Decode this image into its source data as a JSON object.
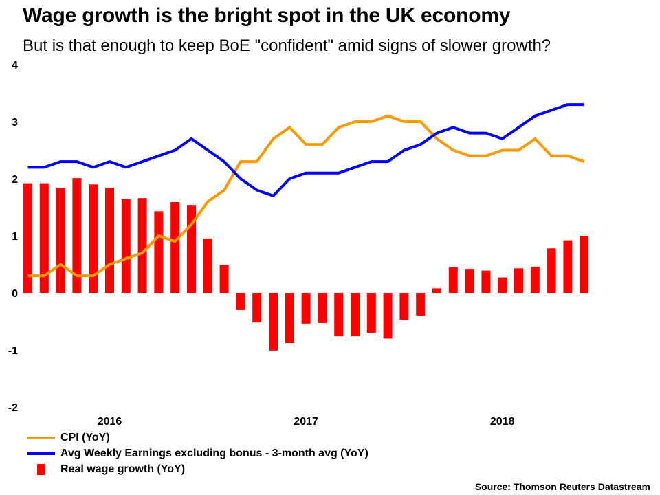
{
  "header": {
    "title": "Wage growth is the bright spot in the UK economy",
    "subtitle": "But is that enough to keep BoE \"confident\" amid signs of slower growth?"
  },
  "source": "Source: Thomson Reuters Datastream",
  "colors": {
    "cpi": "#FF9900",
    "earnings": "#0000FF",
    "real_wage": "#FF0000"
  },
  "legend": [
    {
      "label": "CPI (YoY)",
      "series": "cpi",
      "kind": "line"
    },
    {
      "label": "Avg Weekly Earnings excluding bonus - 3-month avg (YoY)",
      "series": "earnings",
      "kind": "line"
    },
    {
      "label": "Real wage growth (YoY)",
      "series": "real_wage",
      "kind": "bar"
    }
  ],
  "chart_data": {
    "type": "bar+line",
    "title": "Wage growth is the bright spot in the UK economy",
    "subtitle": "But is that enough to keep BoE \"confident\" amid signs of slower growth?",
    "xlabel": "",
    "ylabel": "",
    "ylim": [
      -2,
      4
    ],
    "yticks": [
      4,
      3,
      2,
      1,
      0,
      -1,
      -2
    ],
    "grid": false,
    "legend_position": "bottom-left",
    "x_year_labels": [
      {
        "label": "2016",
        "index": 5
      },
      {
        "label": "2017",
        "index": 17
      },
      {
        "label": "2018",
        "index": 29
      }
    ],
    "n_periods": 35,
    "series": [
      {
        "name": "CPI (YoY)",
        "type": "line",
        "values": [
          0.3,
          0.3,
          0.5,
          0.3,
          0.3,
          0.5,
          0.6,
          0.7,
          1.0,
          0.9,
          1.2,
          1.6,
          1.8,
          2.3,
          2.3,
          2.7,
          2.9,
          2.6,
          2.6,
          2.9,
          3.0,
          3.0,
          3.1,
          3.0,
          3.0,
          2.7,
          2.5,
          2.4,
          2.4,
          2.5,
          2.5,
          2.7,
          2.4,
          2.4,
          2.3
        ]
      },
      {
        "name": "Avg Weekly Earnings excluding bonus - 3-month avg (YoY)",
        "type": "line",
        "values": [
          2.2,
          2.2,
          2.3,
          2.3,
          2.2,
          2.3,
          2.2,
          2.3,
          2.4,
          2.5,
          2.7,
          2.5,
          2.3,
          2.0,
          1.8,
          1.7,
          2.0,
          2.1,
          2.1,
          2.1,
          2.2,
          2.3,
          2.3,
          2.5,
          2.6,
          2.8,
          2.9,
          2.8,
          2.8,
          2.7,
          2.9,
          3.1,
          3.2,
          3.3,
          3.3
        ]
      },
      {
        "name": "Real wage growth (YoY)",
        "type": "bar",
        "values": [
          1.92,
          1.92,
          1.84,
          2.01,
          1.9,
          1.84,
          1.64,
          1.66,
          1.43,
          1.59,
          1.54,
          0.95,
          0.49,
          -0.3,
          -0.52,
          -1.01,
          -0.88,
          -0.54,
          -0.53,
          -0.76,
          -0.76,
          -0.7,
          -0.8,
          -0.47,
          -0.4,
          0.08,
          0.45,
          0.42,
          0.39,
          0.27,
          0.43,
          0.46,
          0.78,
          0.92,
          1.0
        ]
      }
    ]
  }
}
